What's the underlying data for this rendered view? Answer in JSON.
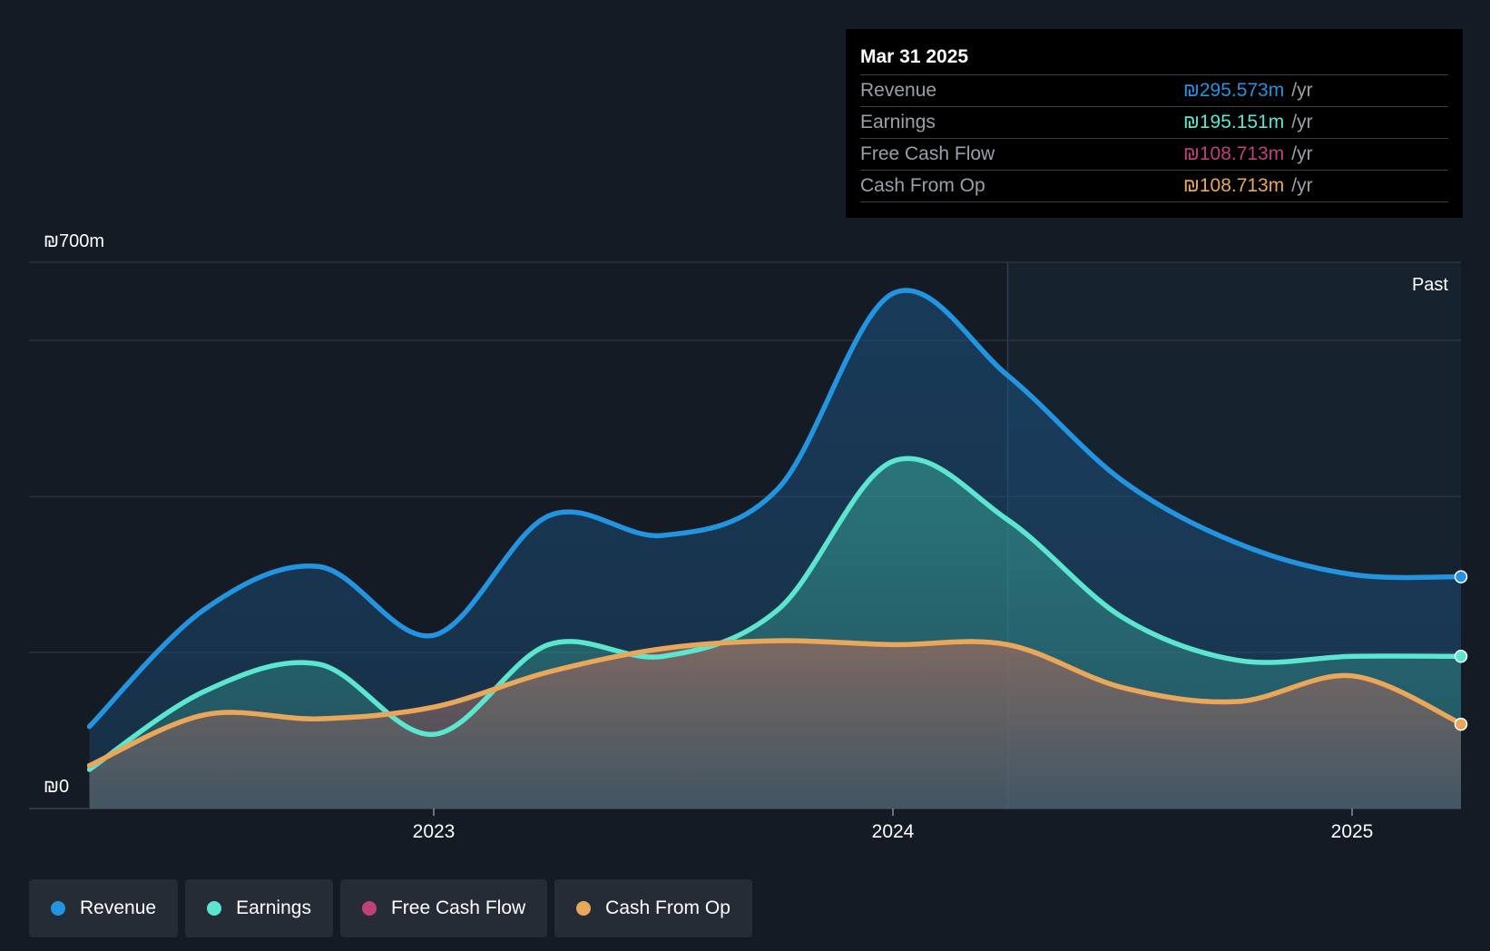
{
  "chart_data": {
    "type": "area",
    "y_axis": {
      "top_label": "₪700m",
      "bottom_label": "₪0",
      "ylim": [
        0,
        700
      ]
    },
    "x_ticks": [
      {
        "label": "2023",
        "x": 2023.0
      },
      {
        "label": "2024",
        "x": 2024.0
      },
      {
        "label": "2025",
        "x": 2025.0
      }
    ],
    "past_label": "Past",
    "past_start_x": 2024.25,
    "x_range": [
      2022.3,
      2025.24
    ],
    "series": [
      {
        "name": "Revenue",
        "color": "#2394df",
        "x": [
          2022.25,
          2022.5,
          2022.75,
          2023.0,
          2023.25,
          2023.5,
          2023.75,
          2024.0,
          2024.25,
          2024.5,
          2024.75,
          2025.0,
          2025.24
        ],
        "values": [
          105,
          255,
          310,
          222,
          375,
          350,
          410,
          660,
          555,
          420,
          340,
          300,
          297
        ]
      },
      {
        "name": "Earnings",
        "color": "#5ce6cf",
        "x": [
          2022.25,
          2022.5,
          2022.75,
          2023.0,
          2023.25,
          2023.5,
          2023.75,
          2024.0,
          2024.25,
          2024.5,
          2024.75,
          2025.0,
          2025.24
        ],
        "values": [
          50,
          150,
          185,
          95,
          210,
          195,
          255,
          445,
          370,
          245,
          190,
          195,
          195
        ]
      },
      {
        "name": "Free Cash Flow",
        "color": "#c0407a",
        "x": [
          2022.25,
          2022.5,
          2022.75,
          2023.0,
          2023.25,
          2023.5,
          2023.75,
          2024.0,
          2024.25,
          2024.5,
          2024.75,
          2025.0,
          2025.24
        ],
        "values": [
          55,
          120,
          115,
          130,
          175,
          205,
          215,
          210,
          210,
          155,
          137,
          170,
          108
        ]
      },
      {
        "name": "Cash From Op",
        "color": "#e8a85a",
        "x": [
          2022.25,
          2022.5,
          2022.75,
          2023.0,
          2023.25,
          2023.5,
          2023.75,
          2024.0,
          2024.25,
          2024.5,
          2024.75,
          2025.0,
          2025.24
        ],
        "values": [
          55,
          120,
          115,
          130,
          175,
          205,
          215,
          210,
          210,
          155,
          137,
          170,
          108
        ]
      }
    ]
  },
  "tooltip": {
    "date": "Mar 31 2025",
    "unit": "/yr",
    "rows": [
      {
        "label": "Revenue",
        "value": "₪295.573m",
        "color": "#2394df"
      },
      {
        "label": "Earnings",
        "value": "₪195.151m",
        "color": "#5ce6cf"
      },
      {
        "label": "Free Cash Flow",
        "value": "₪108.713m",
        "color": "#c0407a"
      },
      {
        "label": "Cash From Op",
        "value": "₪108.713m",
        "color": "#e8a85a"
      }
    ]
  },
  "legend": [
    {
      "label": "Revenue",
      "color": "#2394df"
    },
    {
      "label": "Earnings",
      "color": "#5ce6cf"
    },
    {
      "label": "Free Cash Flow",
      "color": "#c0407a"
    },
    {
      "label": "Cash From Op",
      "color": "#e8a85a"
    }
  ]
}
